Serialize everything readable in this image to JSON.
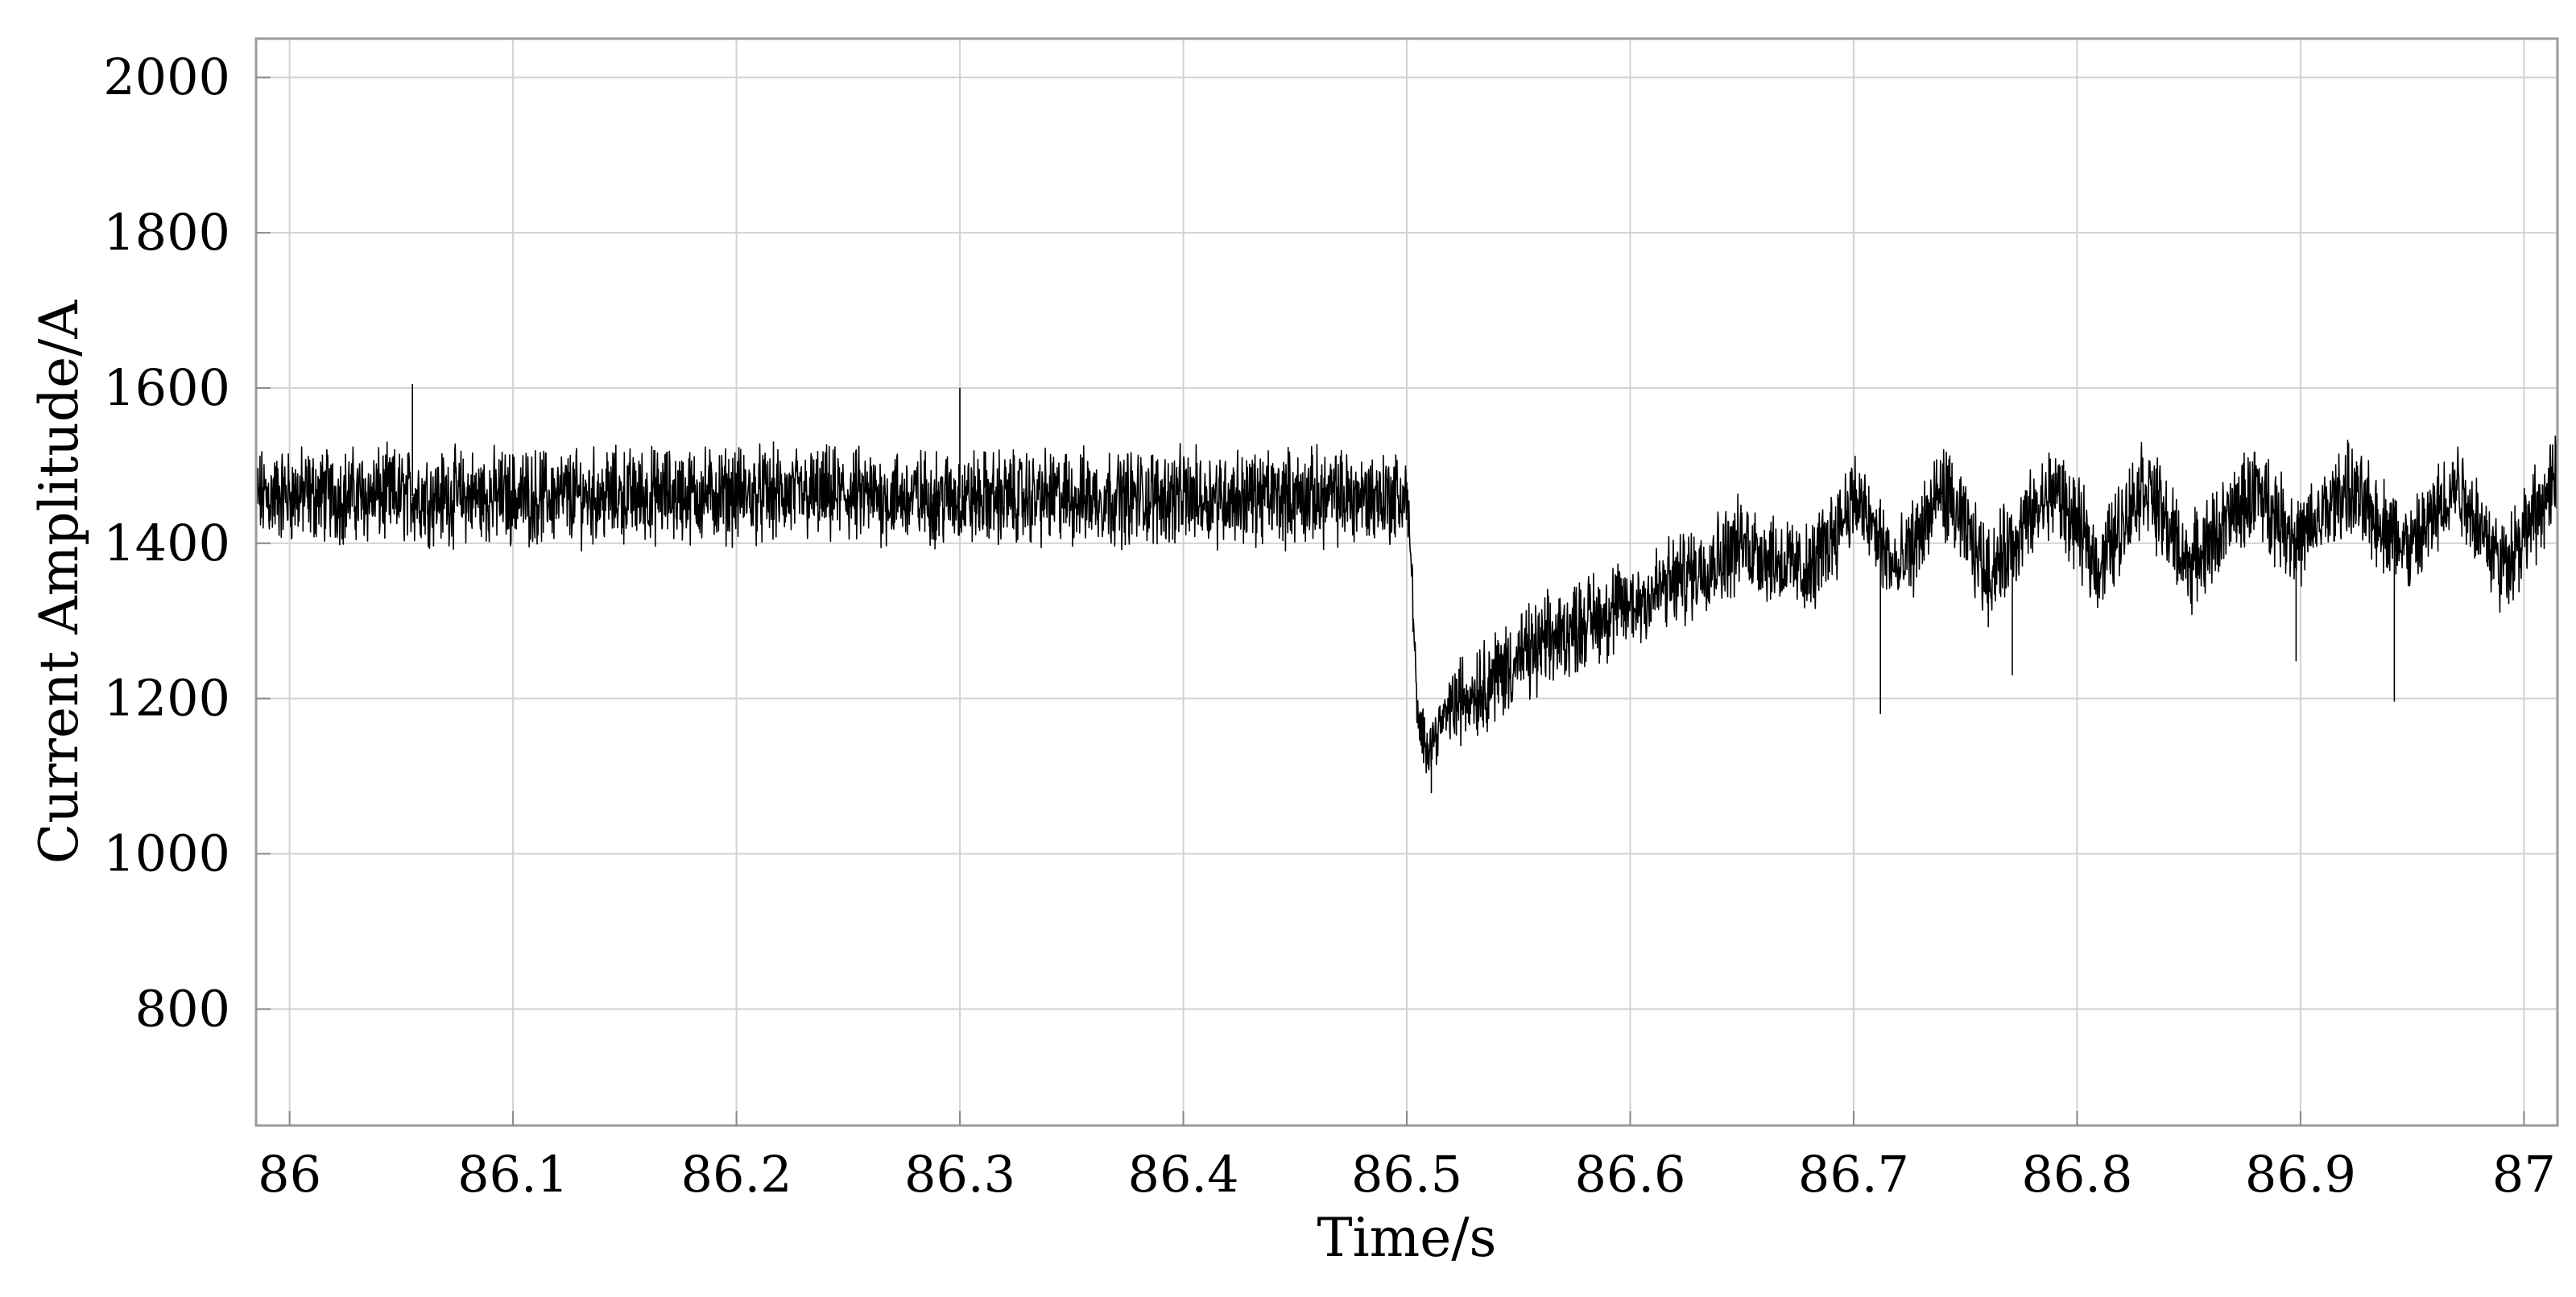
{
  "chart_data": {
    "type": "line",
    "title": "",
    "xlabel": "Time/s",
    "ylabel": "Current Amplitude/A",
    "xlim": [
      85.985,
      87.015
    ],
    "ylim": [
      650,
      2050
    ],
    "x_ticks": [
      86,
      86.1,
      86.2,
      86.3,
      86.4,
      86.5,
      86.6,
      86.7,
      86.8,
      86.9,
      87
    ],
    "x_tick_labels": [
      "86",
      "86.1",
      "86.2",
      "86.3",
      "86.4",
      "86.5",
      "86.6",
      "86.7",
      "86.8",
      "86.9",
      "87"
    ],
    "y_ticks": [
      800,
      1000,
      1200,
      1400,
      1600,
      1800,
      2000
    ],
    "y_tick_labels": [
      "800",
      "1000",
      "1200",
      "1400",
      "1600",
      "1800",
      "2000"
    ],
    "grid": true,
    "series": [
      {
        "color": "#000000",
        "envelope": {
          "x": [
            85.985,
            86.0,
            86.1,
            86.2,
            86.3,
            86.4,
            86.5,
            86.502,
            86.505,
            86.51,
            86.52,
            86.55,
            86.58,
            86.6,
            86.62,
            86.65,
            86.68,
            86.7,
            86.72,
            86.74,
            86.76,
            86.79,
            86.81,
            86.83,
            86.85,
            86.88,
            86.9,
            86.92,
            86.95,
            86.97,
            86.99,
            87.015
          ],
          "mean": [
            1460,
            1462,
            1460,
            1463,
            1458,
            1460,
            1460,
            1380,
            1160,
            1140,
            1190,
            1250,
            1300,
            1320,
            1350,
            1400,
            1360,
            1460,
            1360,
            1470,
            1360,
            1470,
            1370,
            1480,
            1370,
            1470,
            1400,
            1470,
            1390,
            1480,
            1370,
            1480
          ]
        },
        "noise_amplitude": 45,
        "spikes": [
          {
            "x": 86.055,
            "y": 1605
          },
          {
            "x": 86.3,
            "y": 1600
          },
          {
            "x": 86.712,
            "y": 1180
          },
          {
            "x": 86.771,
            "y": 1230
          },
          {
            "x": 86.898,
            "y": 1248
          },
          {
            "x": 86.942,
            "y": 1196
          },
          {
            "x": 86.511,
            "y": 1078
          }
        ]
      }
    ]
  }
}
